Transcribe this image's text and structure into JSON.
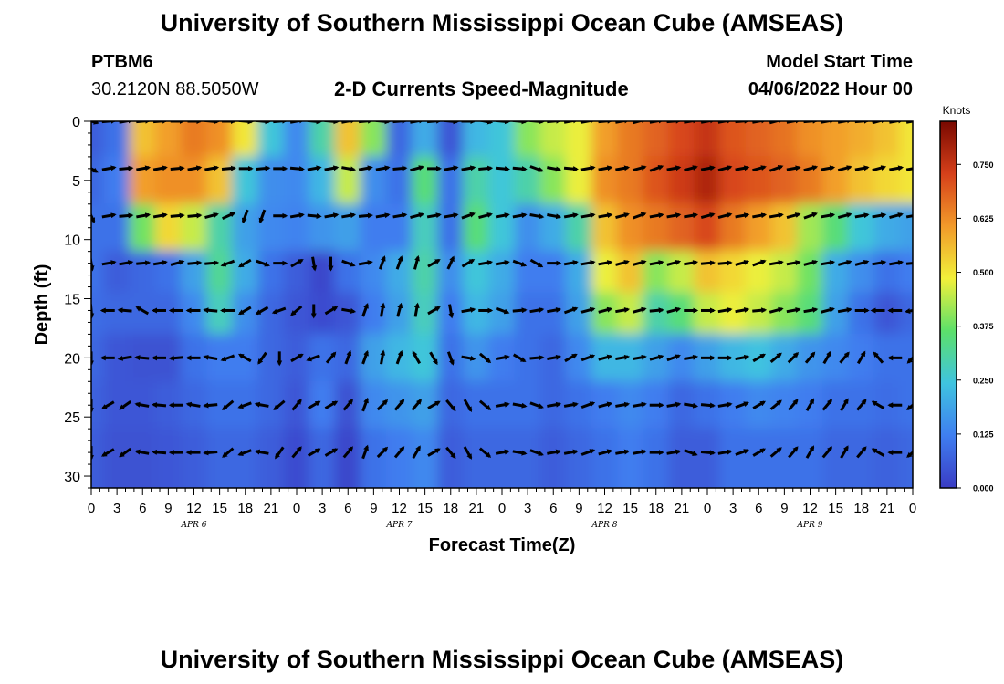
{
  "header": {
    "title": "University of Southern Mississippi Ocean Cube (AMSEAS)",
    "station_name": "PTBM6",
    "station_coords": "30.2120N  88.5050W",
    "chart_title": "2-D Currents Speed-Magnitude",
    "model_start_label": "Model Start Time",
    "model_start_value": "04/06/2022 Hour 00"
  },
  "footer": {
    "title": "University of Southern Mississippi Ocean Cube (AMSEAS)"
  },
  "colors": {
    "scale": [
      "#3a3cc4",
      "#3f7ef0",
      "#3fc4e0",
      "#5ce06a",
      "#f2f03a",
      "#f29a2a",
      "#d6401a",
      "#780800"
    ]
  },
  "chart_data": {
    "type": "heatmap",
    "title": "2-D Currents Speed-Magnitude",
    "xlabel": "Forecast Time(Z)",
    "ylabel": "Depth (ft)",
    "x_tick_labels": [
      "0",
      "3",
      "6",
      "9",
      "12",
      "15",
      "18",
      "21",
      "0",
      "3",
      "6",
      "9",
      "12",
      "15",
      "18",
      "21",
      "0",
      "3",
      "6",
      "9",
      "12",
      "15",
      "18",
      "21",
      "0",
      "3",
      "6",
      "9",
      "12",
      "15",
      "18",
      "21",
      "0"
    ],
    "x_range_hours": [
      0,
      96
    ],
    "day_labels": [
      {
        "hour": 12,
        "label": "APR 6"
      },
      {
        "hour": 36,
        "label": "APR 7"
      },
      {
        "hour": 60,
        "label": "APR 8"
      },
      {
        "hour": 84,
        "label": "APR 9"
      }
    ],
    "y_ticks": [
      0,
      5,
      10,
      15,
      20,
      25,
      30
    ],
    "ylim": [
      0,
      31
    ],
    "colorbar": {
      "label": "Knots",
      "ticks": [
        "0.750",
        "0.625",
        "0.500",
        "0.375",
        "0.250",
        "0.125",
        "0.000"
      ],
      "range": [
        0,
        0.85
      ]
    },
    "depths_ft": [
      1,
      5,
      9,
      13,
      16,
      20,
      24,
      28
    ],
    "times_hr": [
      0,
      3,
      6,
      9,
      12,
      15,
      18,
      21,
      24,
      27,
      30,
      33,
      36,
      39,
      42,
      45,
      48,
      51,
      54,
      57,
      60,
      63,
      66,
      69,
      72,
      75,
      78,
      81,
      84,
      87,
      90,
      93,
      96
    ],
    "speed_knots": [
      [
        0.06,
        0.1,
        0.55,
        0.6,
        0.65,
        0.62,
        0.5,
        0.25,
        0.14,
        0.3,
        0.55,
        0.4,
        0.08,
        0.2,
        0.05,
        0.22,
        0.25,
        0.4,
        0.45,
        0.48,
        0.6,
        0.65,
        0.68,
        0.72,
        0.75,
        0.7,
        0.68,
        0.66,
        0.62,
        0.6,
        0.58,
        0.55,
        0.5
      ],
      [
        0.08,
        0.12,
        0.6,
        0.62,
        0.62,
        0.55,
        0.25,
        0.15,
        0.14,
        0.22,
        0.45,
        0.15,
        0.1,
        0.35,
        0.1,
        0.3,
        0.25,
        0.3,
        0.4,
        0.48,
        0.62,
        0.65,
        0.7,
        0.74,
        0.78,
        0.72,
        0.7,
        0.68,
        0.65,
        0.6,
        0.55,
        0.52,
        0.5
      ],
      [
        0.1,
        0.1,
        0.38,
        0.52,
        0.45,
        0.3,
        0.18,
        0.14,
        0.13,
        0.16,
        0.18,
        0.12,
        0.12,
        0.28,
        0.1,
        0.35,
        0.25,
        0.15,
        0.2,
        0.3,
        0.55,
        0.62,
        0.65,
        0.68,
        0.72,
        0.65,
        0.6,
        0.55,
        0.42,
        0.35,
        0.25,
        0.2,
        0.18
      ],
      [
        0.1,
        0.06,
        0.08,
        0.1,
        0.18,
        0.32,
        0.2,
        0.1,
        0.06,
        0.02,
        0.1,
        0.14,
        0.2,
        0.3,
        0.15,
        0.25,
        0.2,
        0.12,
        0.12,
        0.2,
        0.48,
        0.55,
        0.4,
        0.45,
        0.55,
        0.52,
        0.48,
        0.45,
        0.38,
        0.2,
        0.15,
        0.1,
        0.12
      ],
      [
        0.09,
        0.08,
        0.08,
        0.08,
        0.14,
        0.28,
        0.15,
        0.08,
        0.05,
        0.03,
        0.05,
        0.12,
        0.18,
        0.28,
        0.12,
        0.22,
        0.18,
        0.1,
        0.1,
        0.18,
        0.4,
        0.45,
        0.3,
        0.35,
        0.45,
        0.48,
        0.45,
        0.4,
        0.35,
        0.18,
        0.1,
        0.05,
        0.08
      ],
      [
        0.08,
        0.05,
        0.04,
        0.04,
        0.1,
        0.12,
        0.12,
        0.08,
        0.06,
        0.1,
        0.08,
        0.18,
        0.22,
        0.25,
        0.1,
        0.16,
        0.12,
        0.1,
        0.08,
        0.14,
        0.22,
        0.22,
        0.18,
        0.14,
        0.18,
        0.22,
        0.24,
        0.2,
        0.16,
        0.14,
        0.12,
        0.1,
        0.1
      ],
      [
        0.07,
        0.05,
        0.05,
        0.06,
        0.08,
        0.1,
        0.1,
        0.08,
        0.05,
        0.12,
        0.04,
        0.14,
        0.16,
        0.18,
        0.08,
        0.1,
        0.1,
        0.1,
        0.08,
        0.1,
        0.12,
        0.14,
        0.12,
        0.08,
        0.1,
        0.12,
        0.14,
        0.13,
        0.12,
        0.1,
        0.1,
        0.09,
        0.1
      ],
      [
        0.06,
        0.04,
        0.04,
        0.05,
        0.06,
        0.08,
        0.08,
        0.06,
        0.03,
        0.08,
        0.02,
        0.1,
        0.12,
        0.14,
        0.06,
        0.08,
        0.08,
        0.08,
        0.06,
        0.08,
        0.1,
        0.12,
        0.1,
        0.06,
        0.06,
        0.1,
        0.1,
        0.1,
        0.1,
        0.08,
        0.08,
        0.07,
        0.08
      ]
    ],
    "arrow_depths_ft": [
      0,
      4,
      8,
      12,
      16,
      20,
      24,
      28
    ],
    "arrow_times_hr": [
      0,
      2,
      4,
      6,
      8,
      10,
      12,
      14,
      16,
      18,
      20,
      22,
      24,
      26,
      28,
      30,
      32,
      34,
      36,
      38,
      40,
      42,
      44,
      46,
      48,
      50,
      52,
      54,
      56,
      58,
      60,
      62,
      64,
      66,
      68,
      70,
      72,
      74,
      76,
      78,
      80,
      82,
      84,
      86,
      88,
      90,
      92,
      94,
      96
    ],
    "arrow_direction_deg": [
      [
        105,
        85,
        80,
        85,
        85,
        90,
        90,
        95,
        90,
        95,
        95,
        85,
        80,
        95,
        95,
        80,
        85,
        95,
        85,
        80,
        85,
        95,
        90,
        100,
        95,
        95,
        95,
        85,
        80,
        80,
        85,
        80,
        75,
        80,
        85,
        80,
        80,
        80,
        85,
        80,
        75,
        80,
        85,
        80,
        80,
        85,
        75,
        80,
        80
      ],
      [
        120,
        80,
        85,
        80,
        80,
        85,
        80,
        80,
        85,
        90,
        85,
        90,
        95,
        80,
        80,
        100,
        80,
        80,
        85,
        75,
        90,
        80,
        80,
        85,
        95,
        95,
        110,
        100,
        95,
        80,
        80,
        80,
        75,
        70,
        80,
        75,
        80,
        75,
        80,
        75,
        70,
        80,
        75,
        80,
        75,
        80,
        75,
        80,
        80
      ],
      [
        155,
        80,
        85,
        80,
        80,
        85,
        85,
        75,
        65,
        200,
        200,
        90,
        80,
        95,
        80,
        80,
        85,
        80,
        80,
        75,
        80,
        80,
        70,
        75,
        80,
        80,
        100,
        100,
        80,
        80,
        80,
        75,
        70,
        80,
        80,
        80,
        75,
        75,
        80,
        80,
        80,
        75,
        70,
        80,
        75,
        80,
        80,
        75,
        80
      ],
      [
        170,
        80,
        80,
        85,
        80,
        75,
        85,
        85,
        250,
        240,
        110,
        90,
        60,
        170,
        180,
        110,
        80,
        20,
        20,
        15,
        60,
        25,
        60,
        80,
        80,
        110,
        120,
        90,
        80,
        80,
        80,
        75,
        75,
        80,
        75,
        80,
        85,
        85,
        75,
        70,
        80,
        80,
        75,
        80,
        75,
        75,
        80,
        80,
        85
      ],
      [
        175,
        270,
        275,
        300,
        270,
        270,
        270,
        275,
        270,
        240,
        240,
        250,
        230,
        180,
        60,
        100,
        20,
        10,
        15,
        10,
        60,
        170,
        80,
        90,
        110,
        85,
        80,
        80,
        70,
        75,
        75,
        80,
        75,
        85,
        75,
        90,
        90,
        80,
        80,
        85,
        75,
        80,
        80,
        75,
        80,
        90,
        270,
        270,
        260
      ],
      [
        180,
        270,
        260,
        275,
        270,
        265,
        270,
        280,
        250,
        300,
        215,
        180,
        60,
        250,
        40,
        20,
        20,
        10,
        20,
        330,
        150,
        160,
        100,
        130,
        80,
        120,
        85,
        80,
        60,
        70,
        75,
        80,
        80,
        75,
        70,
        80,
        90,
        90,
        80,
        60,
        50,
        45,
        40,
        30,
        40,
        30,
        320,
        270,
        225
      ],
      [
        180,
        240,
        235,
        280,
        275,
        270,
        280,
        265,
        230,
        250,
        280,
        230,
        40,
        60,
        60,
        40,
        20,
        45,
        40,
        40,
        60,
        140,
        150,
        130,
        80,
        100,
        110,
        80,
        80,
        70,
        75,
        80,
        80,
        90,
        80,
        100,
        95,
        80,
        70,
        60,
        50,
        40,
        30,
        40,
        30,
        40,
        300,
        270,
        230
      ],
      [
        180,
        240,
        235,
        280,
        275,
        270,
        270,
        265,
        230,
        250,
        280,
        215,
        40,
        60,
        60,
        40,
        20,
        45,
        40,
        30,
        60,
        140,
        150,
        130,
        80,
        100,
        110,
        80,
        80,
        70,
        75,
        80,
        80,
        90,
        80,
        110,
        95,
        80,
        70,
        60,
        50,
        40,
        30,
        40,
        30,
        40,
        300,
        270,
        230
      ]
    ]
  }
}
